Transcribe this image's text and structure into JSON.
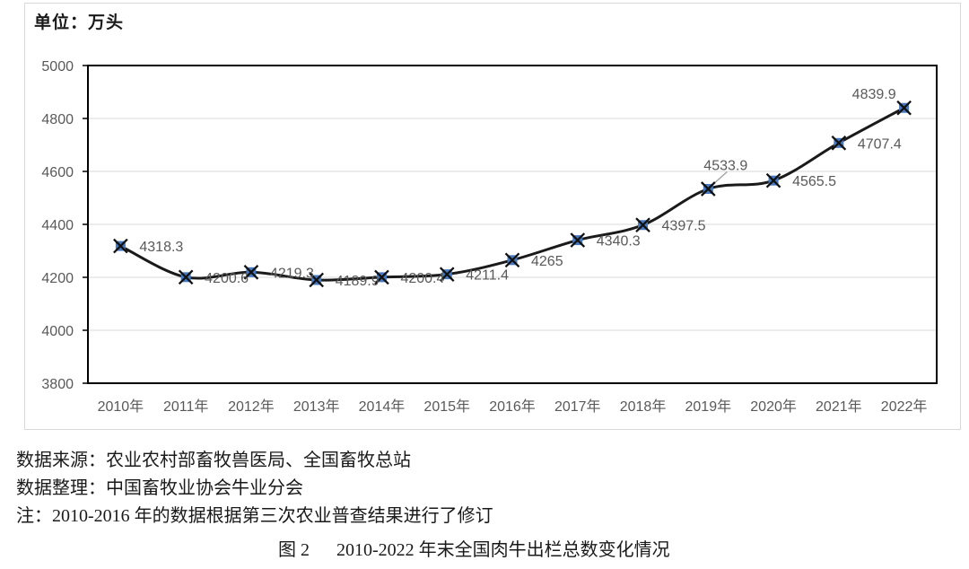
{
  "chart_header": {
    "unit_label": "单位：万头"
  },
  "chart_data": {
    "type": "line",
    "title": "图 2 2010-2022 年末全国肉牛出栏总数变化情况",
    "xlabel": "",
    "ylabel": "单位：万头",
    "categories": [
      "2010年",
      "2011年",
      "2012年",
      "2013年",
      "2014年",
      "2015年",
      "2016年",
      "2017年",
      "2018年",
      "2019年",
      "2020年",
      "2021年",
      "2022年"
    ],
    "values": [
      4318.3,
      4200.6,
      4219.3,
      4189.9,
      4200.4,
      4211.4,
      4265,
      4340.3,
      4397.5,
      4533.9,
      4565.5,
      4707.4,
      4839.9
    ],
    "data_labels": [
      "4318.3",
      "4200.6",
      "4219.3",
      "4189.9",
      "4200.4",
      "4211.4",
      "4265",
      "4340.3",
      "4397.5",
      "4533.9",
      "4565.5",
      "4707.4",
      "4839.9"
    ],
    "ylim": [
      3800,
      5000
    ],
    "yticks": [
      3800,
      4000,
      4200,
      4400,
      4600,
      4800,
      5000
    ],
    "grid": true,
    "legend": "none",
    "line_color": "#1a1a1a",
    "marker_fill": "#4778bf",
    "marker_cross_color": "#111111",
    "gridline_color": "#d9d9d9",
    "axis_text_color": "#595959",
    "data_label_color": "#595959",
    "plot_border_color": "#000000",
    "leader_line_color": "#a6a6a6"
  },
  "notes": {
    "source": "数据来源：农业农村部畜牧兽医局、全国畜牧总站",
    "compiler": "数据整理：中国畜牧业协会牛业分会",
    "remark": "注：2010-2016 年的数据根据第三次农业普查结果进行了修订"
  },
  "caption": {
    "prefix": "图 2",
    "text": "2010-2022 年末全国肉牛出栏总数变化情况"
  }
}
